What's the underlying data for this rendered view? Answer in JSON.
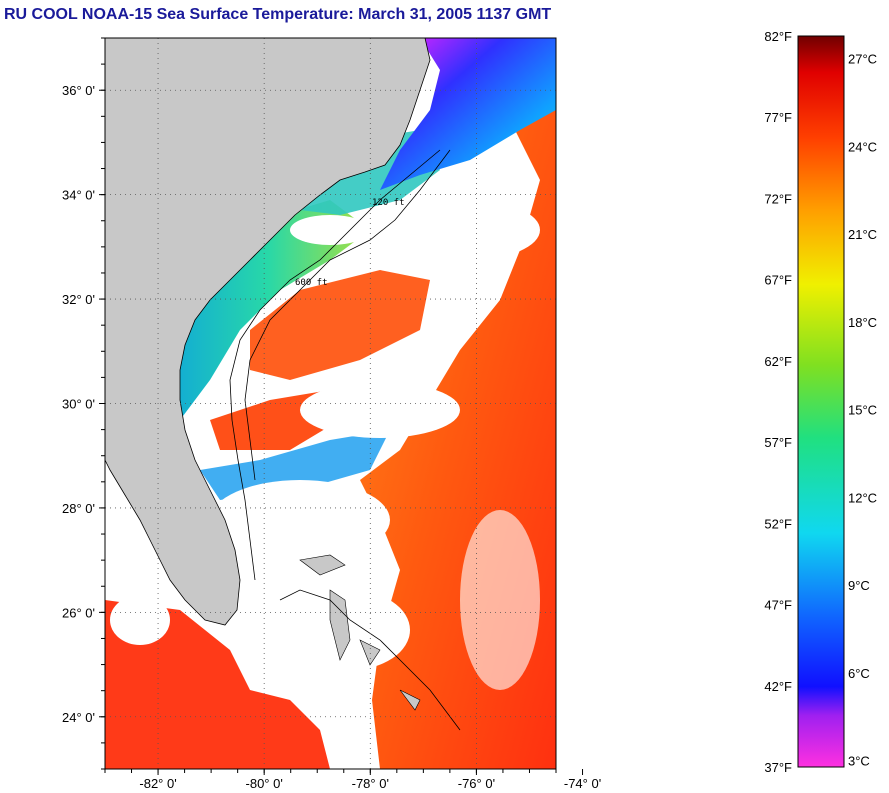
{
  "title": "RU COOL  NOAA-15  Sea Surface Temperature:  March 31, 2005 1137 GMT",
  "map": {
    "lat_labels": [
      "36° 0'",
      "34° 0'",
      "32° 0'",
      "30° 0'",
      "28° 0'",
      "26° 0'",
      "24° 0'"
    ],
    "lat_values": [
      36,
      34,
      32,
      30,
      28,
      26,
      24
    ],
    "lon_labels": [
      "-82° 0'",
      "-80° 0'",
      "-78° 0'",
      "-76° 0'",
      "-74° 0'"
    ],
    "lon_values": [
      -82,
      -80,
      -78,
      -76,
      -74
    ],
    "lat_range": [
      23,
      37
    ],
    "lon_range": [
      -83,
      -74.5
    ],
    "contour_labels": [
      "120 ft",
      "600 ft"
    ],
    "colors": {
      "land": "#c8c8c8",
      "cloud": "#ffffff",
      "frame": "#000000"
    }
  },
  "colorbar": {
    "fahrenheit_labels": [
      "82°F",
      "77°F",
      "72°F",
      "67°F",
      "62°F",
      "57°F",
      "52°F",
      "47°F",
      "42°F",
      "37°F"
    ],
    "fahrenheit_values": [
      82,
      77,
      72,
      67,
      62,
      57,
      52,
      47,
      42,
      37
    ],
    "celsius_labels": [
      "27°C",
      "24°C",
      "21°C",
      "18°C",
      "15°C",
      "12°C",
      "9°C",
      "6°C",
      "3°C"
    ],
    "celsius_values": [
      27,
      24,
      21,
      18,
      15,
      12,
      9,
      6,
      3
    ],
    "range_f": [
      37,
      82
    ]
  }
}
